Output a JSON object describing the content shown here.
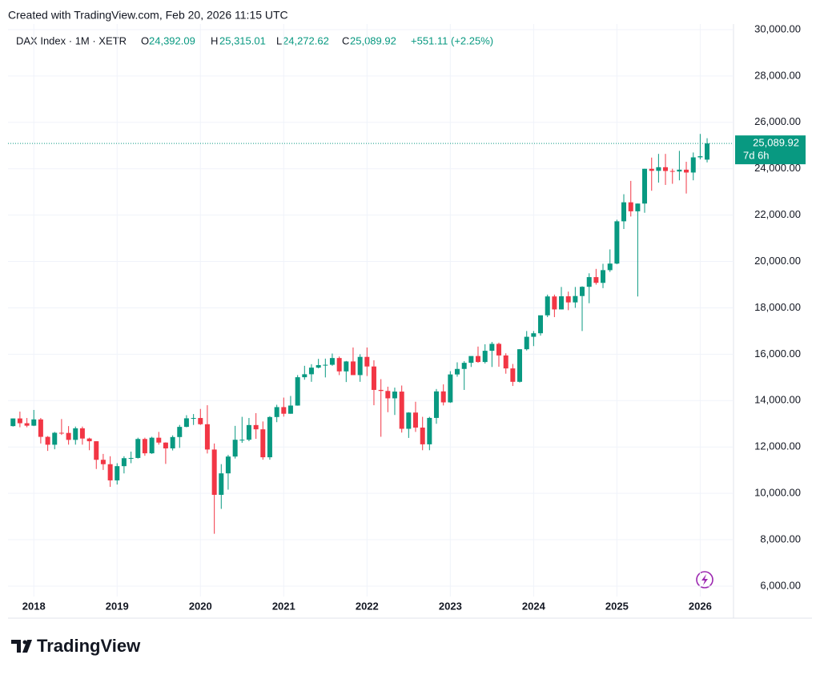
{
  "header": {
    "created": "Created with TradingView.com, Feb 20, 2026 11:15 UTC"
  },
  "legend": {
    "symbol": "DAX Index · 1M · XETR",
    "o_label": "O",
    "o": "24,392.09",
    "h_label": "H",
    "h": "25,315.01",
    "l_label": "L",
    "l": "24,272.62",
    "c_label": "C",
    "c": "25,089.92",
    "change": "+551.11 (+2.25%)"
  },
  "price_tag": {
    "price": "25,089.92",
    "countdown": "7d 6h"
  },
  "footer": {
    "brand": "TradingView"
  },
  "chart_data": {
    "type": "candlestick",
    "up_color": "#089981",
    "down_color": "#f23645",
    "grid": true,
    "xlim": [
      2017.69,
      2026.4
    ],
    "xticks": [
      2018,
      2019,
      2020,
      2021,
      2022,
      2023,
      2024,
      2025,
      2026
    ],
    "ylim": [
      5550,
      30240
    ],
    "yticks": [
      {
        "value": 6000,
        "label": "6,000.00"
      },
      {
        "value": 8000,
        "label": "8,000.00"
      },
      {
        "value": 10000,
        "label": "10,000.00"
      },
      {
        "value": 12000,
        "label": "12,000.00"
      },
      {
        "value": 14000,
        "label": "14,000.00"
      },
      {
        "value": 16000,
        "label": "16,000.00"
      },
      {
        "value": 18000,
        "label": "18,000.00"
      },
      {
        "value": 20000,
        "label": "20,000.00"
      },
      {
        "value": 22000,
        "label": "22,000.00"
      },
      {
        "value": 24000,
        "label": "24,000.00"
      },
      {
        "value": 26000,
        "label": "26,000.00"
      },
      {
        "value": 28000,
        "label": "28,000.00"
      },
      {
        "value": 30000,
        "label": "30,000.00"
      }
    ],
    "x": [
      2017.75,
      2017.833,
      2017.917,
      2018,
      2018.083,
      2018.167,
      2018.25,
      2018.333,
      2018.417,
      2018.5,
      2018.583,
      2018.667,
      2018.75,
      2018.833,
      2018.917,
      2019,
      2019.083,
      2019.167,
      2019.25,
      2019.333,
      2019.417,
      2019.5,
      2019.583,
      2019.667,
      2019.75,
      2019.833,
      2019.917,
      2020,
      2020.083,
      2020.167,
      2020.25,
      2020.333,
      2020.417,
      2020.5,
      2020.583,
      2020.667,
      2020.75,
      2020.833,
      2020.917,
      2021,
      2021.083,
      2021.167,
      2021.25,
      2021.333,
      2021.417,
      2021.5,
      2021.583,
      2021.667,
      2021.75,
      2021.833,
      2021.917,
      2022,
      2022.083,
      2022.167,
      2022.25,
      2022.333,
      2022.417,
      2022.5,
      2022.583,
      2022.667,
      2022.75,
      2022.833,
      2022.917,
      2023,
      2023.083,
      2023.167,
      2023.25,
      2023.333,
      2023.417,
      2023.5,
      2023.583,
      2023.667,
      2023.75,
      2023.833,
      2023.917,
      2024,
      2024.083,
      2024.167,
      2024.25,
      2024.333,
      2024.417,
      2024.5,
      2024.583,
      2024.667,
      2024.75,
      2024.833,
      2024.917,
      2025,
      2025.083,
      2025.167,
      2025.25,
      2025.333,
      2025.417,
      2025.5,
      2025.583,
      2025.667,
      2025.75,
      2025.833,
      2025.917,
      2026,
      2026.083
    ],
    "open": [
      12900,
      13230,
      13024,
      12918,
      13189,
      12436,
      12097,
      12612,
      12605,
      12306,
      12805,
      12364,
      12247,
      11447,
      11257,
      10559,
      11173,
      11516,
      11526,
      12344,
      11727,
      12399,
      12189,
      11939,
      12428,
      12867,
      13236,
      13249,
      12981,
      11890,
      9936,
      10862,
      11587,
      12311,
      12313,
      12945,
      12761,
      11556,
      13291,
      13719,
      13433,
      13786,
      15008,
      15136,
      15421,
      15531,
      15544,
      15835,
      15260,
      15688,
      15100,
      15885,
      15471,
      14461,
      14415,
      14098,
      14388,
      12784,
      13484,
      12835,
      12114,
      13253,
      14397,
      13924,
      15128,
      15365,
      15629,
      15922,
      15664,
      16148,
      16447,
      15947,
      15387,
      14810,
      16215,
      16752,
      16904,
      17678,
      18492,
      17932,
      18498,
      18235,
      18509,
      18907,
      19325,
      19078,
      19626,
      19909,
      21732,
      22551,
      22163,
      22497,
      23997,
      23909,
      24065,
      23902,
      23881,
      23958,
      23836,
      24490,
      24392.09
    ],
    "high": [
      13230,
      13525,
      13250,
      13597,
      13250,
      12470,
      12650,
      13204,
      12900,
      12880,
      12880,
      12400,
      12250,
      11700,
      11600,
      11300,
      11600,
      11800,
      12400,
      12400,
      12440,
      12650,
      12200,
      12500,
      12950,
      13370,
      13420,
      13640,
      13800,
      12150,
      11260,
      11660,
      12910,
      13300,
      13250,
      13460,
      13100,
      13330,
      13820,
      14130,
      14200,
      15100,
      15500,
      15570,
      15800,
      15810,
      16030,
      15900,
      15710,
      16290,
      16000,
      16290,
      15740,
      14925,
      14600,
      14560,
      14650,
      13500,
      13950,
      13300,
      13300,
      14500,
      14700,
      15270,
      15650,
      15700,
      15900,
      16330,
      16430,
      16530,
      16500,
      16040,
      15580,
      16220,
      17000,
      17000,
      17600,
      18570,
      18570,
      18900,
      18700,
      18900,
      18930,
      19490,
      19680,
      19900,
      20520,
      21800,
      22900,
      23475,
      22500,
      24000,
      24480,
      24640,
      24640,
      24000,
      24770,
      24300,
      24700,
      25500,
      25315.01
    ],
    "low": [
      12880,
      12850,
      12850,
      12900,
      12150,
      11830,
      11900,
      12520,
      12100,
      12100,
      12100,
      11860,
      11050,
      11010,
      10280,
      10380,
      10860,
      11300,
      11500,
      11620,
      11700,
      12100,
      11270,
      11850,
      11960,
      12850,
      12950,
      12950,
      11720,
      8256,
      9330,
      10160,
      11500,
      12180,
      12250,
      12350,
      11450,
      11450,
      13070,
      13310,
      13430,
      13780,
      14900,
      14810,
      15390,
      15000,
      15500,
      15100,
      14800,
      15100,
      14810,
      15060,
      13800,
      12440,
      13500,
      13380,
      12620,
      12390,
      12650,
      11860,
      11860,
      13000,
      13790,
      13900,
      15030,
      14460,
      15450,
      15630,
      15600,
      15450,
      15460,
      15160,
      14630,
      14780,
      16160,
      16350,
      16800,
      17600,
      17600,
      17930,
      17900,
      18000,
      17000,
      18200,
      19000,
      18850,
      19550,
      19880,
      21400,
      21940,
      18490,
      22100,
      23050,
      23400,
      23300,
      23350,
      23500,
      22930,
      23500,
      24400,
      24272.62
    ],
    "close": [
      13230,
      13024,
      12918,
      13189,
      12436,
      12097,
      12612,
      12605,
      12306,
      12805,
      12364,
      12247,
      11447,
      11257,
      10559,
      11173,
      11516,
      11526,
      12344,
      11727,
      12399,
      12189,
      11939,
      12428,
      12867,
      13236,
      13249,
      12981,
      11890,
      9936,
      10862,
      11587,
      12311,
      12313,
      12945,
      12761,
      11556,
      13291,
      13719,
      13433,
      13786,
      15008,
      15136,
      15421,
      15531,
      15544,
      15835,
      15260,
      15688,
      15100,
      15885,
      15471,
      14461,
      14415,
      14098,
      14388,
      12784,
      13484,
      12835,
      12114,
      13253,
      14397,
      13924,
      15128,
      15365,
      15629,
      15922,
      15664,
      16148,
      16447,
      15947,
      15387,
      14810,
      16215,
      16752,
      16904,
      17678,
      18492,
      17932,
      18498,
      18235,
      18509,
      18907,
      19325,
      19078,
      19626,
      19909,
      21732,
      22551,
      22163,
      22497,
      23997,
      23909,
      24065,
      23902,
      23881,
      23958,
      23836,
      24490,
      24539,
      25089.92
    ]
  }
}
